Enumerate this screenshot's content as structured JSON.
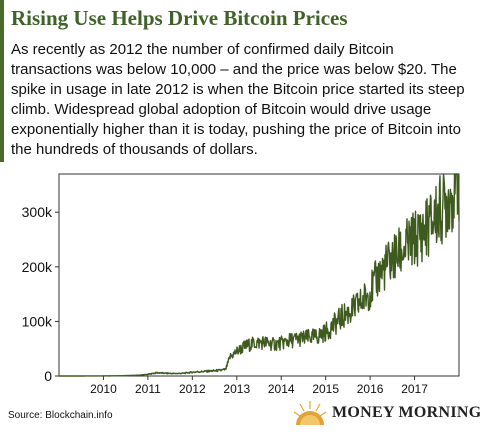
{
  "header": {
    "title": "Rising Use Helps Drive Bitcoin Prices",
    "description": "As recently as 2012 the number of confirmed daily Bitcoin transactions was below 10,000 – and the price was below $20. The spike in usage in late 2012 is when the Bitcoin price started its steep climb. Widespread global adoption of Bitcoin would drive usage exponentially higher than it is today, pushing the price of Bitcoin into the hundreds of thousands of dollars."
  },
  "footer": {
    "source": "Source: Blockchain.info",
    "brand": "MONEY MORNING"
  },
  "colors": {
    "accent": "#4a6a2a",
    "line": "#3e5a1e",
    "title": "#3f6228"
  },
  "chart_data": {
    "type": "line",
    "title": "",
    "xlabel": "",
    "ylabel": "",
    "xlim": [
      2009.0,
      2018.0
    ],
    "ylim": [
      0,
      370000
    ],
    "x_ticks": [
      2010,
      2011,
      2012,
      2013,
      2014,
      2015,
      2016,
      2017
    ],
    "x_tick_labels": [
      "2010",
      "2011",
      "2012",
      "2013",
      "2014",
      "2015",
      "2016",
      "2017"
    ],
    "y_ticks": [
      0,
      100000,
      200000,
      300000
    ],
    "y_tick_labels": [
      "0",
      "100k",
      "200k",
      "300k"
    ],
    "grid": false,
    "series": [
      {
        "name": "",
        "x": [
          2009.0,
          2009.5,
          2010.0,
          2010.4,
          2010.8,
          2011.0,
          2011.2,
          2011.4,
          2011.6,
          2011.8,
          2012.0,
          2012.2,
          2012.4,
          2012.6,
          2012.75,
          2012.85,
          2013.0,
          2013.2,
          2013.4,
          2013.6,
          2013.8,
          2014.0,
          2014.2,
          2014.4,
          2014.6,
          2014.8,
          2015.0,
          2015.2,
          2015.4,
          2015.6,
          2015.8,
          2016.0,
          2016.2,
          2016.4,
          2016.6,
          2016.8,
          2017.0,
          2017.2,
          2017.4,
          2017.6,
          2017.8,
          2018.0
        ],
        "values": [
          0,
          0,
          200,
          400,
          1500,
          3000,
          6000,
          5000,
          4500,
          5000,
          7000,
          8000,
          9000,
          10000,
          12000,
          35000,
          45000,
          55000,
          60000,
          62000,
          58000,
          60000,
          65000,
          68000,
          70000,
          72000,
          80000,
          95000,
          110000,
          120000,
          135000,
          155000,
          185000,
          205000,
          220000,
          235000,
          250000,
          265000,
          285000,
          305000,
          330000,
          360000
        ]
      }
    ]
  }
}
